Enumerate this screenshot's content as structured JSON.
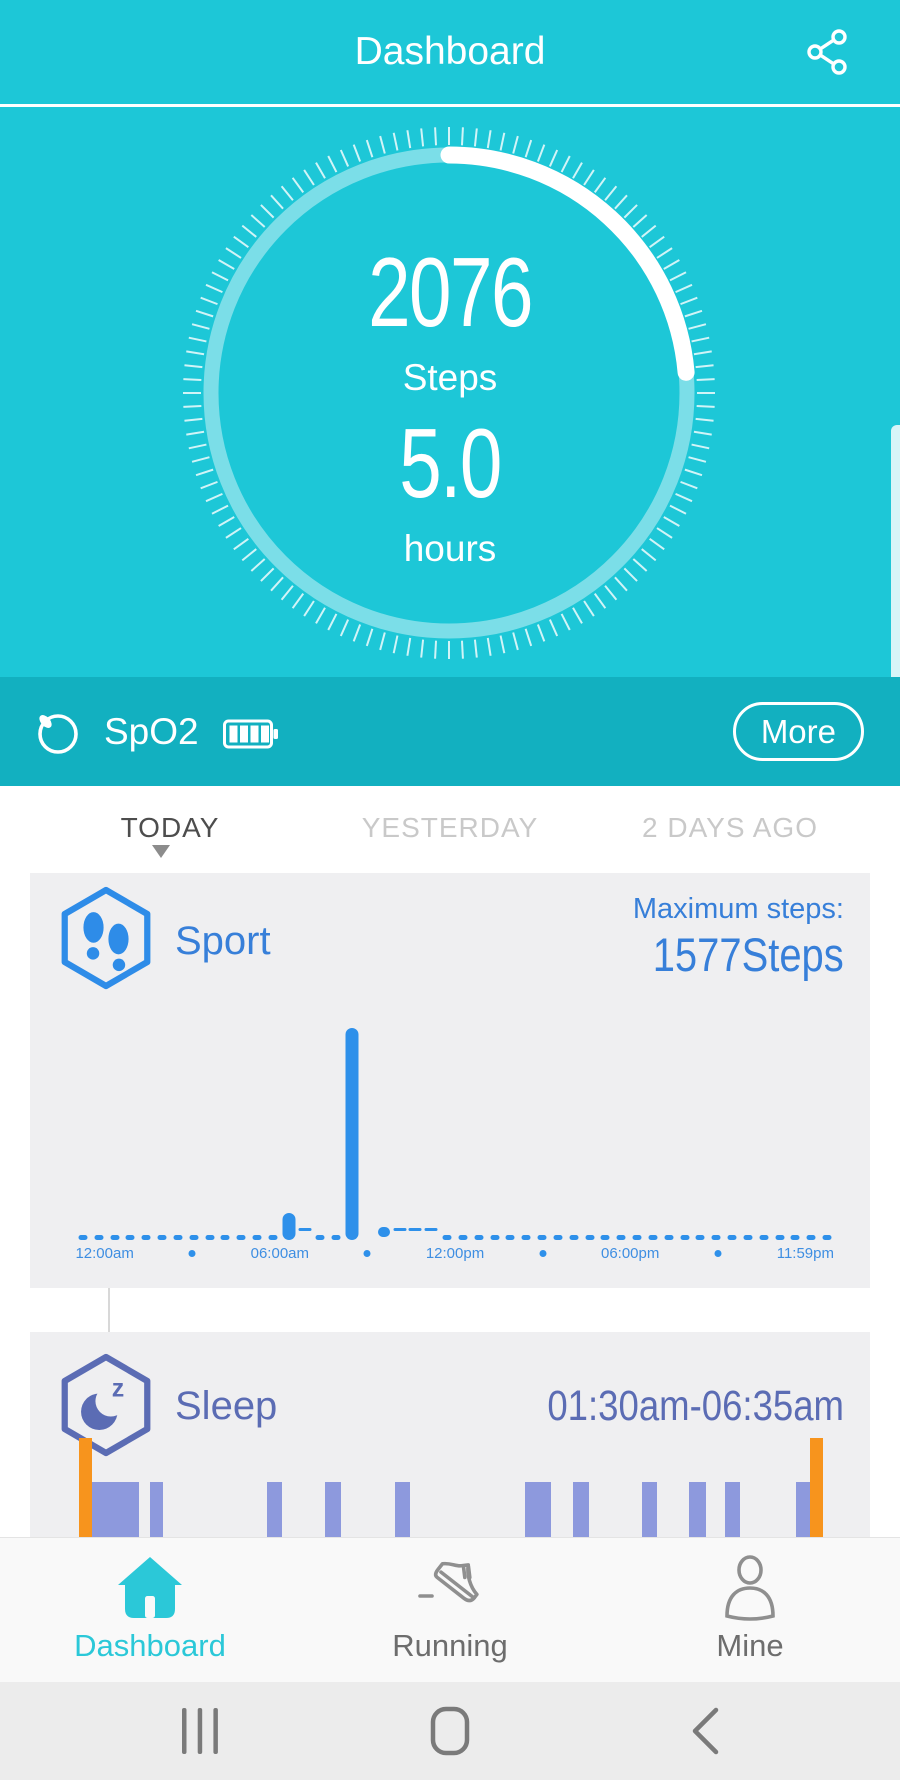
{
  "colors": {
    "header_cyan": "#1dc7d7",
    "device_band_teal": "#12b0c0",
    "card_gray": "#efeff1",
    "sport_bar_blue": "#2e90ea",
    "sport_text_blue": "#377fd9",
    "axis_blue": "#3e8ee2",
    "sleep_purple": "#5b6cb4",
    "sleep_bar_purple": "#8d99dd",
    "sleep_awake_orange": "#f7941d",
    "active_nav_cyan": "#2bc8d8",
    "tab_active": "#4d4d4d",
    "tab_inactive": "#c9c9c9"
  },
  "header": {
    "title": "Dashboard",
    "share_icon": "share-icon"
  },
  "ring": {
    "steps_value": "2076",
    "steps_label": "Steps",
    "hours_value": "5.0",
    "hours_label": "hours",
    "progress_degrees": 85,
    "tick_count": 120
  },
  "device_bar": {
    "name": "SpO2",
    "battery_state": "full",
    "more_label": "More"
  },
  "tabs": {
    "active_index": 0,
    "items": [
      {
        "label": "TODAY"
      },
      {
        "label": "YESTERDAY"
      },
      {
        "label": "2 DAYS AGO"
      }
    ]
  },
  "sport_card": {
    "title": "Sport",
    "max_steps_label": "Maximum steps:",
    "max_steps_value": "1577Steps",
    "chart_data": {
      "type": "bar",
      "unit": "steps",
      "slots": 48,
      "slot_minutes": 30,
      "max_value": 1577,
      "bars": {
        "13": 200,
        "17": 1577,
        "19": 60
      },
      "dash_slots": [
        14,
        20,
        21,
        22
      ],
      "gap_slots": [
        18
      ],
      "zero_marker": "dot",
      "x_labels": [
        "12:00am",
        "06:00am",
        "12:00pm",
        "06:00pm",
        "11:59pm"
      ],
      "minor_tick_style": "dot-between-labels"
    }
  },
  "sleep_card": {
    "title": "Sleep",
    "time_range": "01:30am-06:35am",
    "chart_data": {
      "type": "timeline",
      "start": "01:30am",
      "end": "06:35am",
      "legend": {
        "awake": "#f7941d",
        "sleep": "#8d99dd"
      },
      "segments": [
        {
          "kind": "awake",
          "from_pct": 0.5,
          "to_pct": 2.2
        },
        {
          "kind": "sleep",
          "from_pct": 2.2,
          "to_pct": 8.4
        },
        {
          "kind": "sleep",
          "from_pct": 9.9,
          "to_pct": 11.6
        },
        {
          "kind": "sleep",
          "from_pct": 25.3,
          "to_pct": 27.2
        },
        {
          "kind": "sleep",
          "from_pct": 32.9,
          "to_pct": 35.0
        },
        {
          "kind": "sleep",
          "from_pct": 42.1,
          "to_pct": 44.1
        },
        {
          "kind": "sleep",
          "from_pct": 59.2,
          "to_pct": 62.6
        },
        {
          "kind": "sleep",
          "from_pct": 65.5,
          "to_pct": 67.6
        },
        {
          "kind": "sleep",
          "from_pct": 74.6,
          "to_pct": 76.6
        },
        {
          "kind": "sleep",
          "from_pct": 80.8,
          "to_pct": 83.0
        },
        {
          "kind": "sleep",
          "from_pct": 85.5,
          "to_pct": 87.5
        },
        {
          "kind": "sleep",
          "from_pct": 94.9,
          "to_pct": 96.8
        },
        {
          "kind": "awake",
          "from_pct": 96.7,
          "to_pct": 98.4
        }
      ]
    }
  },
  "bottom_nav": {
    "items": [
      {
        "label": "Dashboard",
        "icon": "home-icon",
        "active": true
      },
      {
        "label": "Running",
        "icon": "running-shoe-icon",
        "active": false
      },
      {
        "label": "Mine",
        "icon": "person-icon",
        "active": false
      }
    ]
  },
  "system_nav": {
    "buttons": [
      "recent-apps",
      "home",
      "back"
    ]
  }
}
